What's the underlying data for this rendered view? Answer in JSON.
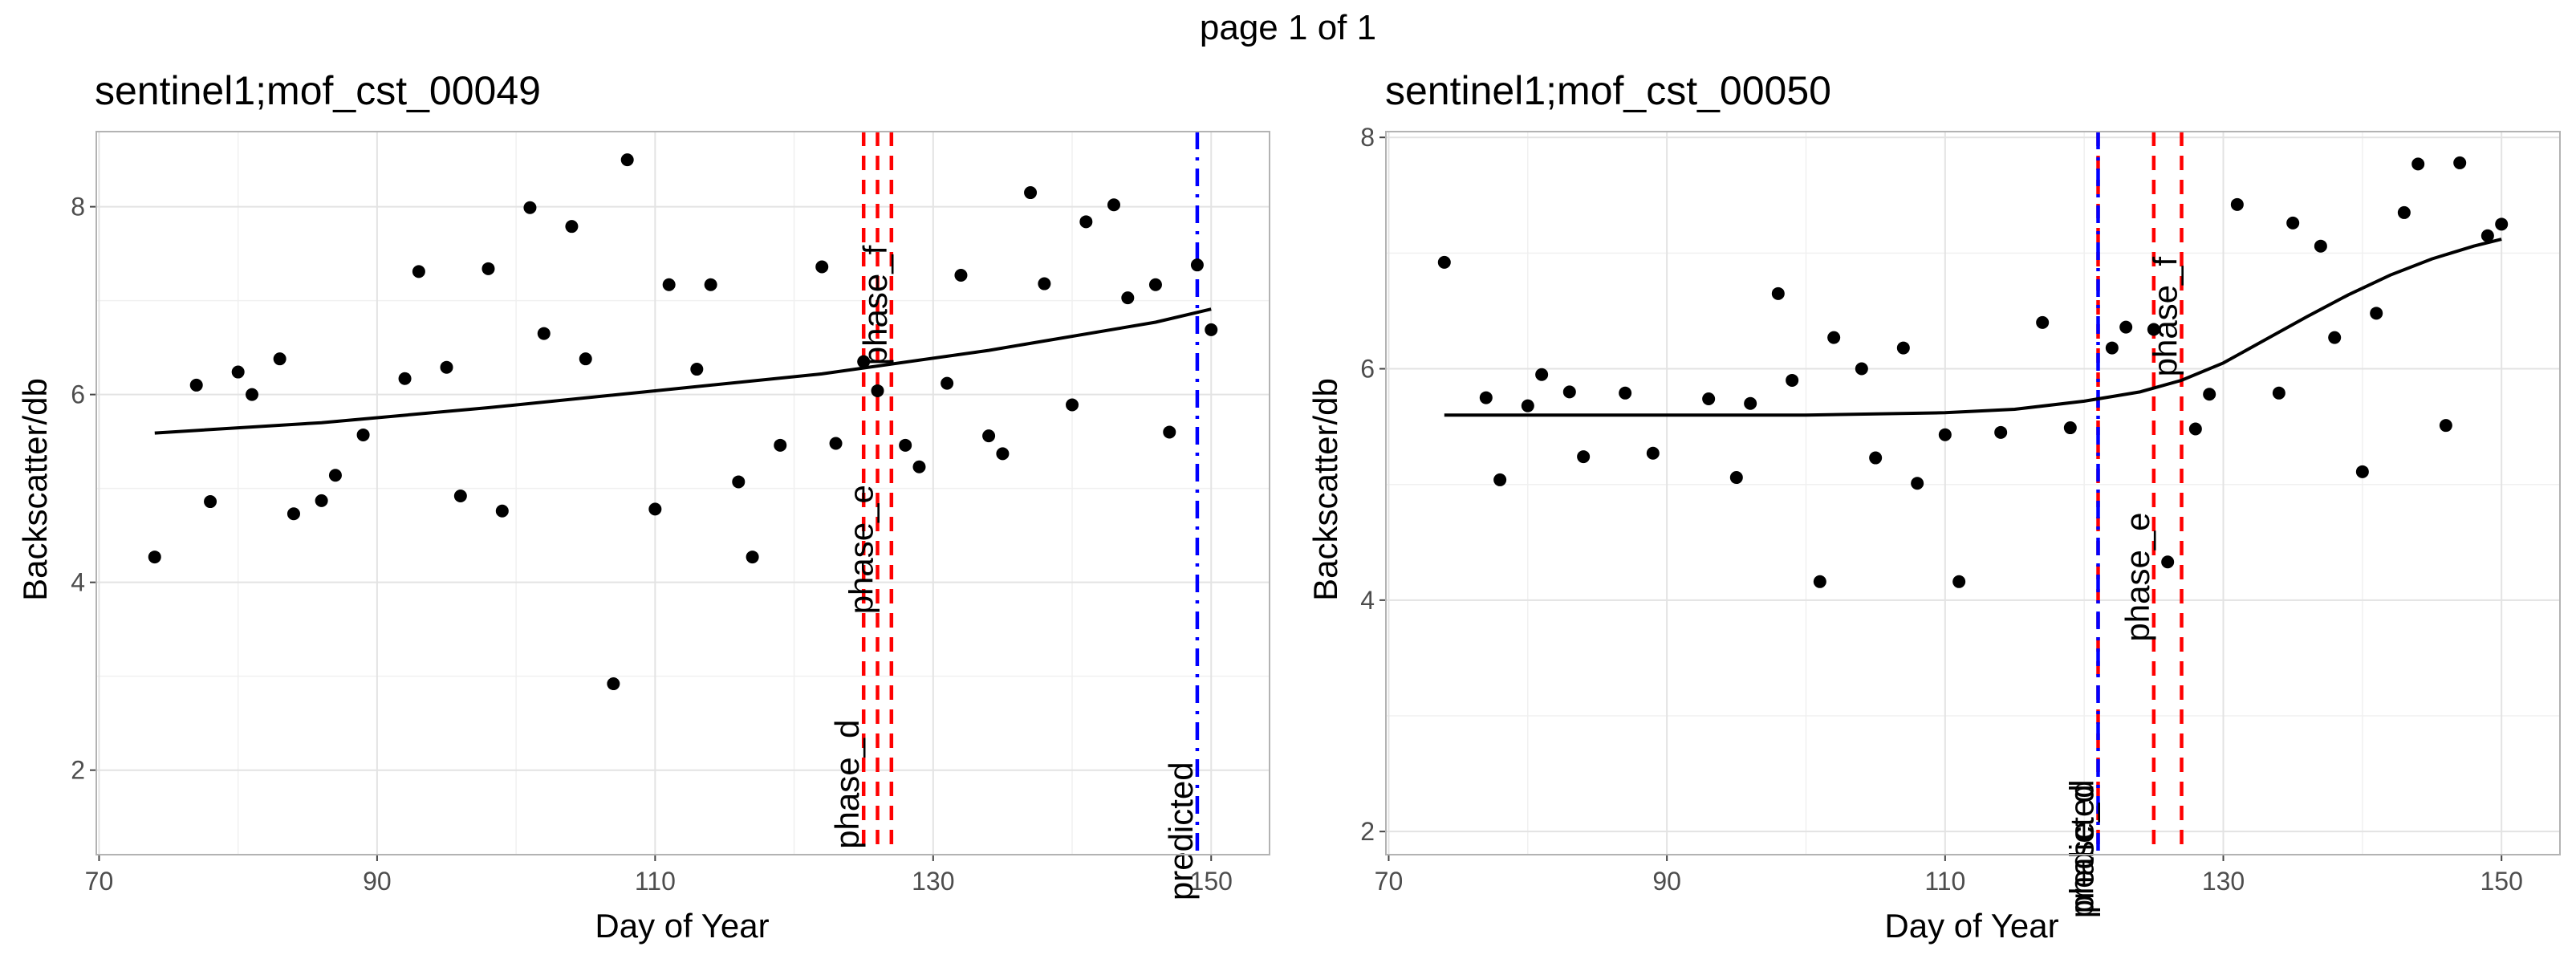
{
  "page_title": "page 1 of 1",
  "chart_data": [
    {
      "type": "scatter",
      "title": "sentinel1;mof_cst_00049",
      "xlabel": "Day of Year",
      "ylabel": "Backscatter/db",
      "xlim": [
        69.8,
        154.2
      ],
      "ylim": [
        1.1,
        8.8
      ],
      "xticks": [
        70,
        90,
        110,
        130,
        150
      ],
      "yticks": [
        2,
        4,
        6,
        8
      ],
      "grid": true,
      "points": [
        [
          74,
          4.27
        ],
        [
          77,
          6.1
        ],
        [
          78,
          4.86
        ],
        [
          80,
          6.24
        ],
        [
          81,
          6.0
        ],
        [
          83,
          6.38
        ],
        [
          84,
          4.73
        ],
        [
          86,
          4.87
        ],
        [
          87,
          5.14
        ],
        [
          89,
          5.57
        ],
        [
          92,
          6.17
        ],
        [
          93,
          7.31
        ],
        [
          95,
          6.29
        ],
        [
          96,
          4.92
        ],
        [
          98,
          7.34
        ],
        [
          99,
          4.76
        ],
        [
          101,
          7.99
        ],
        [
          102,
          6.65
        ],
        [
          104,
          7.79
        ],
        [
          105,
          6.38
        ],
        [
          107,
          2.92
        ],
        [
          108,
          8.5
        ],
        [
          110,
          4.78
        ],
        [
          111,
          7.17
        ],
        [
          113,
          6.27
        ],
        [
          114,
          7.17
        ],
        [
          116,
          5.07
        ],
        [
          117,
          4.27
        ],
        [
          119,
          5.46
        ],
        [
          122,
          7.36
        ],
        [
          123,
          5.48
        ],
        [
          125,
          6.35
        ],
        [
          126,
          6.04
        ],
        [
          128,
          5.46
        ],
        [
          129,
          5.23
        ],
        [
          131,
          6.12
        ],
        [
          132,
          7.27
        ],
        [
          134,
          5.56
        ],
        [
          135,
          5.37
        ],
        [
          137,
          8.15
        ],
        [
          138,
          7.18
        ],
        [
          140,
          5.89
        ],
        [
          141,
          7.84
        ],
        [
          143,
          8.02
        ],
        [
          144,
          7.03
        ],
        [
          146,
          7.17
        ],
        [
          147,
          5.6
        ],
        [
          149,
          7.38
        ],
        [
          150,
          6.69
        ]
      ],
      "fit_line": [
        [
          74,
          5.59
        ],
        [
          86,
          5.7
        ],
        [
          98,
          5.86
        ],
        [
          110,
          6.04
        ],
        [
          122,
          6.22
        ],
        [
          134,
          6.47
        ],
        [
          146,
          6.77
        ],
        [
          150,
          6.91
        ]
      ],
      "vlines": [
        {
          "x": 125,
          "label": "phase_d",
          "style": "dashed",
          "color": "#ff0000",
          "label_y": 1.85
        },
        {
          "x": 126,
          "label": "phase_e",
          "style": "dashed",
          "color": "#ff0000",
          "label_y": 4.35
        },
        {
          "x": 127,
          "label": "phase_f",
          "style": "dashed",
          "color": "#ff0000",
          "label_y": 6.95
        },
        {
          "x": 149,
          "label": "predicted",
          "style": "dotdash",
          "color": "#0000ff",
          "label_y": 1.35
        }
      ]
    },
    {
      "type": "scatter",
      "title": "sentinel1;mof_cst_00050",
      "xlabel": "Day of Year",
      "ylabel": "Backscatter/db",
      "xlim": [
        69.8,
        154.2
      ],
      "ylim": [
        1.8,
        8.05
      ],
      "xticks": [
        70,
        90,
        110,
        130,
        150
      ],
      "yticks": [
        2,
        4,
        6,
        8
      ],
      "grid": true,
      "points": [
        [
          74,
          6.92
        ],
        [
          77,
          5.75
        ],
        [
          78,
          5.04
        ],
        [
          80,
          5.68
        ],
        [
          81,
          5.95
        ],
        [
          83,
          5.8
        ],
        [
          84,
          5.24
        ],
        [
          87,
          5.79
        ],
        [
          89,
          5.27
        ],
        [
          93,
          5.74
        ],
        [
          95,
          5.06
        ],
        [
          96,
          5.7
        ],
        [
          98,
          6.65
        ],
        [
          99,
          5.9
        ],
        [
          101,
          4.16
        ],
        [
          102,
          6.27
        ],
        [
          104,
          6.0
        ],
        [
          105,
          5.23
        ],
        [
          107,
          6.18
        ],
        [
          108,
          5.01
        ],
        [
          110,
          5.43
        ],
        [
          111,
          4.16
        ],
        [
          114,
          5.45
        ],
        [
          117,
          6.4
        ],
        [
          119,
          5.49
        ],
        [
          125,
          6.34
        ],
        [
          122,
          6.18
        ],
        [
          123,
          6.36
        ],
        [
          126,
          4.33
        ],
        [
          128,
          5.48
        ],
        [
          129,
          5.78
        ],
        [
          131,
          7.42
        ],
        [
          134,
          5.79
        ],
        [
          135,
          7.26
        ],
        [
          137,
          7.06
        ],
        [
          138,
          6.27
        ],
        [
          140,
          5.11
        ],
        [
          141,
          6.48
        ],
        [
          143,
          7.35
        ],
        [
          144,
          7.77
        ],
        [
          146,
          5.51
        ],
        [
          147,
          7.78
        ],
        [
          149,
          7.15
        ],
        [
          150,
          7.25
        ]
      ],
      "fit_line": [
        [
          74,
          5.6
        ],
        [
          90,
          5.6
        ],
        [
          100,
          5.6
        ],
        [
          110,
          5.62
        ],
        [
          115,
          5.65
        ],
        [
          120,
          5.72
        ],
        [
          124,
          5.8
        ],
        [
          127,
          5.9
        ],
        [
          130,
          6.05
        ],
        [
          133,
          6.25
        ],
        [
          136,
          6.45
        ],
        [
          139,
          6.64
        ],
        [
          142,
          6.81
        ],
        [
          145,
          6.95
        ],
        [
          148,
          7.06
        ],
        [
          150,
          7.12
        ]
      ],
      "vlines": [
        {
          "x": 121,
          "label": "phase_d",
          "style": "dashed",
          "color": "#ff0000",
          "label_y": 1.85
        },
        {
          "x": 121,
          "label": "predicted",
          "style": "dotdash",
          "color": "#0000ff",
          "label_y": 1.85
        },
        {
          "x": 125,
          "label": "phase_e",
          "style": "dashed",
          "color": "#ff0000",
          "label_y": 4.2
        },
        {
          "x": 127,
          "label": "phase_f",
          "style": "dashed",
          "color": "#ff0000",
          "label_y": 6.45
        }
      ]
    }
  ]
}
